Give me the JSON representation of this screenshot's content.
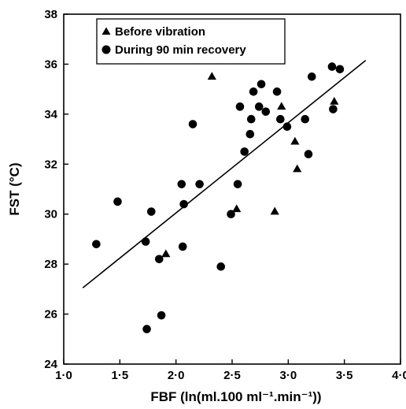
{
  "chart_data": {
    "type": "scatter",
    "xlabel": "FBF (ln(ml.100 ml⁻¹.min⁻¹))",
    "ylabel": "FST (°C)",
    "xlim": [
      1.0,
      4.0
    ],
    "ylim": [
      24,
      38
    ],
    "xticks": [
      1.0,
      1.5,
      2.0,
      2.5,
      3.0,
      3.5,
      4.0
    ],
    "xtick_labels": [
      "1·0",
      "1·5",
      "2·0",
      "2·5",
      "3·0",
      "3·5",
      "4·0"
    ],
    "yticks": [
      24,
      26,
      28,
      30,
      32,
      34,
      36,
      38
    ],
    "ytick_labels": [
      "24",
      "26",
      "28",
      "30",
      "32",
      "34",
      "36",
      "38"
    ],
    "grid": false,
    "legend_position": "top-left",
    "series": [
      {
        "name": "Before vibration",
        "marker": "triangle",
        "color": "#000000",
        "points": [
          [
            1.91,
            28.4
          ],
          [
            2.32,
            35.5
          ],
          [
            2.54,
            30.2
          ],
          [
            2.88,
            30.1
          ],
          [
            2.94,
            34.3
          ],
          [
            3.06,
            32.9
          ],
          [
            3.08,
            31.8
          ],
          [
            3.41,
            34.5
          ]
        ]
      },
      {
        "name": "During 90 min recovery",
        "marker": "circle",
        "color": "#000000",
        "points": [
          [
            1.29,
            28.8
          ],
          [
            1.48,
            30.5
          ],
          [
            1.73,
            28.9
          ],
          [
            1.74,
            25.4
          ],
          [
            1.78,
            30.1
          ],
          [
            1.85,
            28.2
          ],
          [
            1.87,
            25.95
          ],
          [
            2.05,
            31.2
          ],
          [
            2.06,
            28.7
          ],
          [
            2.07,
            30.4
          ],
          [
            2.15,
            33.6
          ],
          [
            2.21,
            31.2
          ],
          [
            2.4,
            27.9
          ],
          [
            2.49,
            30.0
          ],
          [
            2.55,
            31.2
          ],
          [
            2.57,
            34.3
          ],
          [
            2.61,
            32.5
          ],
          [
            2.66,
            33.2
          ],
          [
            2.67,
            33.8
          ],
          [
            2.69,
            34.9
          ],
          [
            2.74,
            34.3
          ],
          [
            2.76,
            35.2
          ],
          [
            2.8,
            34.1
          ],
          [
            2.9,
            34.9
          ],
          [
            2.93,
            33.8
          ],
          [
            2.99,
            33.5
          ],
          [
            3.15,
            33.8
          ],
          [
            3.18,
            32.4
          ],
          [
            3.21,
            35.5
          ],
          [
            3.39,
            35.9
          ],
          [
            3.4,
            34.2
          ],
          [
            3.46,
            35.8
          ]
        ]
      }
    ],
    "fit_line": {
      "x": [
        1.17,
        3.69
      ],
      "y": [
        27.05,
        36.15
      ]
    }
  }
}
